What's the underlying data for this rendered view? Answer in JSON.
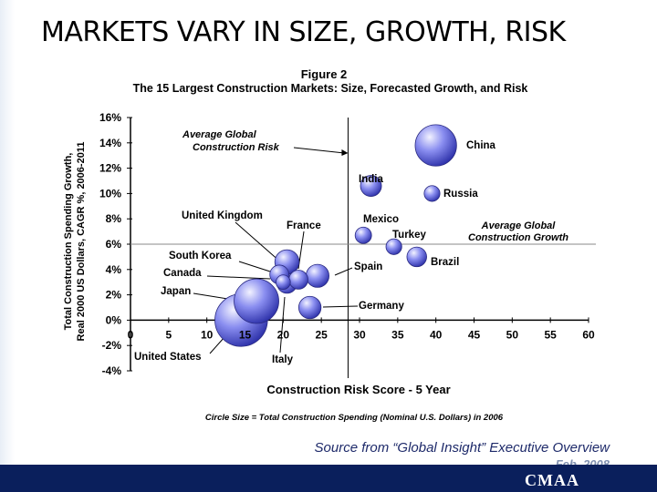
{
  "slide": {
    "title": "MARKETS VARY IN SIZE, GROWTH, RISK",
    "source": "Source from “Global Insight” Executive Overview",
    "source_date": "Feb. 2008",
    "brand": "CMAA"
  },
  "chart_data": {
    "type": "scatter",
    "figure_label": "Figure 2",
    "title": "The 15 Largest Construction Markets: Size, Forecasted Growth, and Risk",
    "xlabel": "Construction Risk Score - 5 Year",
    "ylabel_line1": "Total Construction Spending Growth,",
    "ylabel_line2": "Real 2000 US Dollars, CAGR %, 2006-2011",
    "size_note": "Circle Size = Total Construction Spending (Nominal U.S. Dollars) in 2006",
    "xlim": [
      0,
      60
    ],
    "ylim": [
      -4,
      16
    ],
    "x_ticks": [
      "0",
      "5",
      "10",
      "15",
      "20",
      "25",
      "30",
      "35",
      "40",
      "45",
      "50",
      "55",
      "60"
    ],
    "y_ticks": [
      "16%",
      "14%",
      "12%",
      "10%",
      "8%",
      "6%",
      "4%",
      "2%",
      "0%",
      "-2%",
      "-4%"
    ],
    "reference_lines": {
      "avg_risk_x": 28.5,
      "avg_growth_y": 6,
      "avg_risk_label_1": "Average Global",
      "avg_risk_label_2": "Construction Risk",
      "avg_growth_label_1": "Average Global",
      "avg_growth_label_2": "Construction Growth"
    },
    "points": [
      {
        "name": "China",
        "x": 40,
        "y": 13.8,
        "size": 6.3
      },
      {
        "name": "India",
        "x": 31.5,
        "y": 10.6,
        "size": 3.2
      },
      {
        "name": "Russia",
        "x": 39.5,
        "y": 10.0,
        "size": 2.4
      },
      {
        "name": "Mexico",
        "x": 30.5,
        "y": 6.7,
        "size": 2.5
      },
      {
        "name": "Turkey",
        "x": 34.5,
        "y": 5.8,
        "size": 2.4
      },
      {
        "name": "Brazil",
        "x": 37.5,
        "y": 5.0,
        "size": 3.0
      },
      {
        "name": "Spain",
        "x": 24.5,
        "y": 3.5,
        "size": 3.5
      },
      {
        "name": "France",
        "x": 20.5,
        "y": 4.6,
        "size": 3.7
      },
      {
        "name": "United Kingdom",
        "x": 19.5,
        "y": 3.6,
        "size": 2.9
      },
      {
        "name": "South Korea",
        "x": 22,
        "y": 3.2,
        "size": 2.9
      },
      {
        "name": "Canada",
        "x": 20.5,
        "y": 2.9,
        "size": 3.0
      },
      {
        "name": "Germany",
        "x": 23.5,
        "y": 1.0,
        "size": 3.4
      },
      {
        "name": "Japan",
        "x": 16.5,
        "y": 1.5,
        "size": 6.8
      },
      {
        "name": "United States",
        "x": 14.5,
        "y": 0.0,
        "size": 8.0
      },
      {
        "name": "Italy",
        "x": 20,
        "y": 3.0,
        "size": 2.2
      }
    ]
  }
}
